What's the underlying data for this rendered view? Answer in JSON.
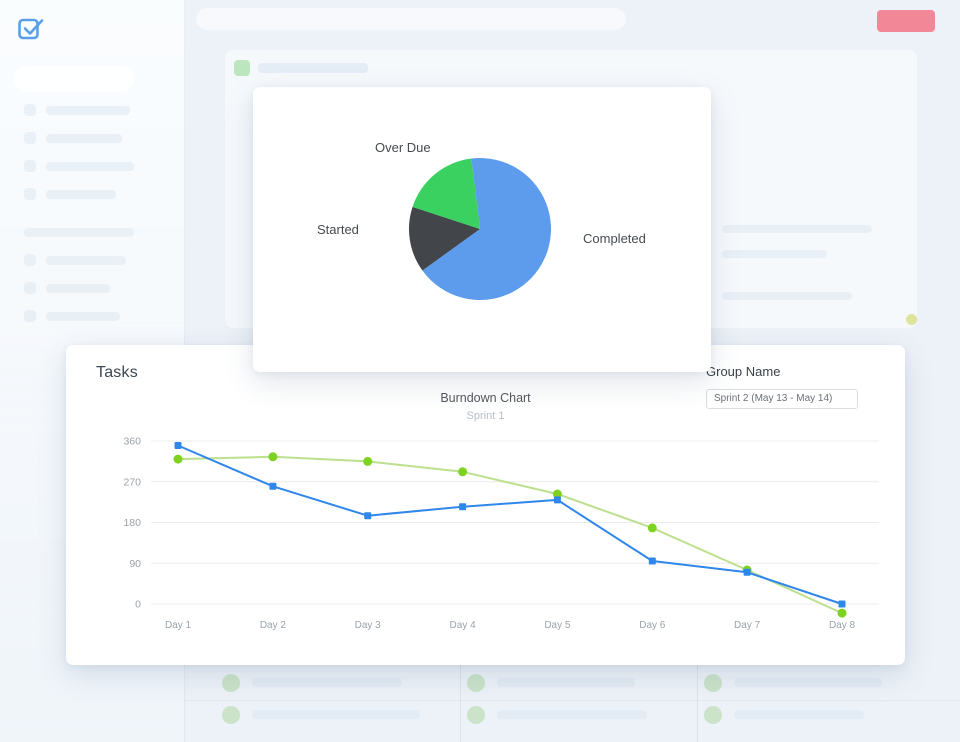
{
  "colors": {
    "background": "#edf2f8",
    "card": "#ffffff",
    "accent_blue": "#2f87ec",
    "pie_completed": "#5d9cec",
    "pie_started": "#42464b",
    "pie_overdue": "#3ad160",
    "ideal_line_green": "#bce08d",
    "ideal_marker_green": "#7ed321",
    "grid_line": "#ececec",
    "axis_text": "#9aa3ab",
    "header_button_red": "#f26d7e"
  },
  "tasks_card": {
    "title": "Tasks",
    "group_name_label": "Group Name",
    "sprint_select_value": "Sprint 2 (May 13 - May 14)"
  },
  "chart_data": [
    {
      "type": "pie",
      "start_angle_deg": 97,
      "direction": "clockwise",
      "slices": [
        {
          "label": "Completed",
          "value": 67,
          "color": "#5d9cec"
        },
        {
          "label": "Started",
          "value": 15,
          "color": "#42464b"
        },
        {
          "label": "Over Due",
          "value": 18,
          "color": "#3ad160"
        }
      ]
    },
    {
      "type": "line",
      "title": "Burndown Chart",
      "subtitle": "Sprint 1",
      "categories": [
        "Day 1",
        "Day 2",
        "Day 3",
        "Day 4",
        "Day 5",
        "Day 6",
        "Day 7",
        "Day 8"
      ],
      "yticks": [
        360,
        270,
        180,
        90,
        0
      ],
      "ylim": [
        0,
        360
      ],
      "grid": true,
      "legend": "none",
      "series": [
        {
          "name": "green-series",
          "color": "#bce08d",
          "marker": "circle",
          "marker_color": "#7ed321",
          "values": [
            320,
            325,
            315,
            292,
            243,
            168,
            75,
            -20
          ]
        },
        {
          "name": "blue-series",
          "color": "#2f87ec",
          "marker": "square",
          "values": [
            350,
            260,
            195,
            215,
            230,
            95,
            70,
            0
          ]
        }
      ]
    }
  ]
}
